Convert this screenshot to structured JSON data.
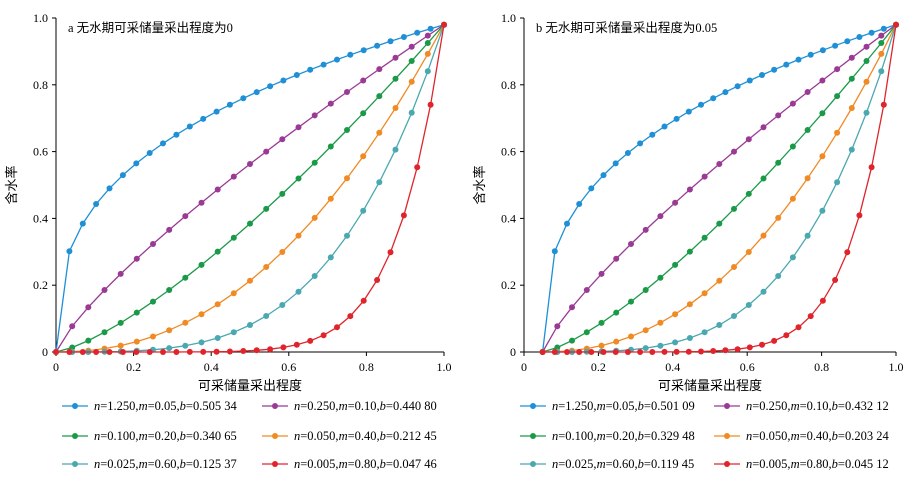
{
  "chart_data": [
    {
      "type": "line",
      "title": "a  无水期可采储量采出程度为0",
      "xlabel": "可采储量采出程度",
      "ylabel": "含水率",
      "xlim": [
        0,
        1
      ],
      "ylim": [
        0,
        1
      ],
      "xticks": [
        "0",
        "0.2",
        "0.4",
        "0.6",
        "0.8",
        "1.0"
      ],
      "yticks": [
        "0",
        "0.2",
        "0.4",
        "0.6",
        "0.8",
        "1.0"
      ],
      "x_start": 0,
      "series": [
        {
          "name": "n=1.250,m=0.05,b=0.505 34",
          "n_label": "n",
          "param_text": "=1.250,",
          "m_label": "m",
          "m_text": "=0.05,",
          "b_label": "b",
          "b_text": "=0.505 34",
          "color": "#1f8fd6",
          "exponent": 0.35,
          "points": 30
        },
        {
          "name": "n=0.250,m=0.10,b=0.440 80",
          "n_label": "n",
          "param_text": "=0.250,",
          "m_label": "m",
          "m_text": "=0.10,",
          "b_label": "b",
          "b_text": "=0.440 80",
          "color": "#9b3a94",
          "exponent": 0.8,
          "points": 25
        },
        {
          "name": "n=0.100,m=0.20,b=0.340 65",
          "n_label": "n",
          "param_text": "=0.100,",
          "m_label": "m",
          "m_text": "=0.20,",
          "b_label": "b",
          "b_text": "=0.340 65",
          "color": "#1a9a48",
          "exponent": 1.35,
          "points": 25
        },
        {
          "name": "n=0.050,m=0.40,b=0.212 45",
          "n_label": "n",
          "param_text": "=0.050,",
          "m_label": "m",
          "m_text": "=0.40,",
          "b_label": "b",
          "b_text": "=0.212 45",
          "color": "#f08a24",
          "exponent": 2.2,
          "points": 25
        },
        {
          "name": "n=0.025,m=0.60,b=0.125 37",
          "n_label": "n",
          "param_text": "=0.025,",
          "m_label": "m",
          "m_text": "=0.60,",
          "b_label": "b",
          "b_text": "=0.125 37",
          "color": "#4aa8b0",
          "exponent": 3.6,
          "points": 25
        },
        {
          "name": "n=0.005,m=0.80,b=0.047 46",
          "n_label": "n",
          "param_text": "=0.005,",
          "m_label": "m",
          "m_text": "=0.80,",
          "b_label": "b",
          "b_text": "=0.047 46",
          "color": "#e0242c",
          "exponent": 8,
          "points": 30
        }
      ]
    },
    {
      "type": "line",
      "title": "b  无水期可采储量采出程度为0.05",
      "xlabel": "可采储量采出程度",
      "ylabel": "含水率",
      "xlim": [
        0,
        1
      ],
      "ylim": [
        0,
        1
      ],
      "xticks": [
        "0",
        "0.2",
        "0.4",
        "0.6",
        "0.8",
        "1.0"
      ],
      "yticks": [
        "0",
        "0.2",
        "0.4",
        "0.6",
        "0.8",
        "1.0"
      ],
      "x_start": 0.05,
      "series": [
        {
          "name": "n=1.250,m=0.05,b=0.501 09",
          "n_label": "n",
          "param_text": "=1.250,",
          "m_label": "m",
          "m_text": "=0.05,",
          "b_label": "b",
          "b_text": "=0.501 09",
          "color": "#1f8fd6",
          "exponent": 0.35,
          "points": 30
        },
        {
          "name": "n=0.250,m=0.10,b=0.432 12",
          "n_label": "n",
          "param_text": "=0.250,",
          "m_label": "m",
          "m_text": "=0.10,",
          "b_label": "b",
          "b_text": "=0.432 12",
          "color": "#9b3a94",
          "exponent": 0.8,
          "points": 25
        },
        {
          "name": "n=0.100,m=0.20,b=0.329 48",
          "n_label": "n",
          "param_text": "=0.100,",
          "m_label": "m",
          "m_text": "=0.20,",
          "b_label": "b",
          "b_text": "=0.329 48",
          "color": "#1a9a48",
          "exponent": 1.35,
          "points": 25
        },
        {
          "name": "n=0.050,m=0.40,b=0.203 24",
          "n_label": "n",
          "param_text": "=0.050,",
          "m_label": "m",
          "m_text": "=0.40,",
          "b_label": "b",
          "b_text": "=0.203 24",
          "color": "#f08a24",
          "exponent": 2.2,
          "points": 25
        },
        {
          "name": "n=0.025,m=0.60,b=0.119 45",
          "n_label": "n",
          "param_text": "=0.025,",
          "m_label": "m",
          "m_text": "=0.60,",
          "b_label": "b",
          "b_text": "=0.119 45",
          "color": "#4aa8b0",
          "exponent": 3.6,
          "points": 25
        },
        {
          "name": "n=0.005,m=0.80,b=0.045 12",
          "n_label": "n",
          "param_text": "=0.005,",
          "m_label": "m",
          "m_text": "=0.80,",
          "b_label": "b",
          "b_text": "=0.045 12",
          "color": "#e0242c",
          "exponent": 8,
          "points": 30
        }
      ]
    }
  ]
}
